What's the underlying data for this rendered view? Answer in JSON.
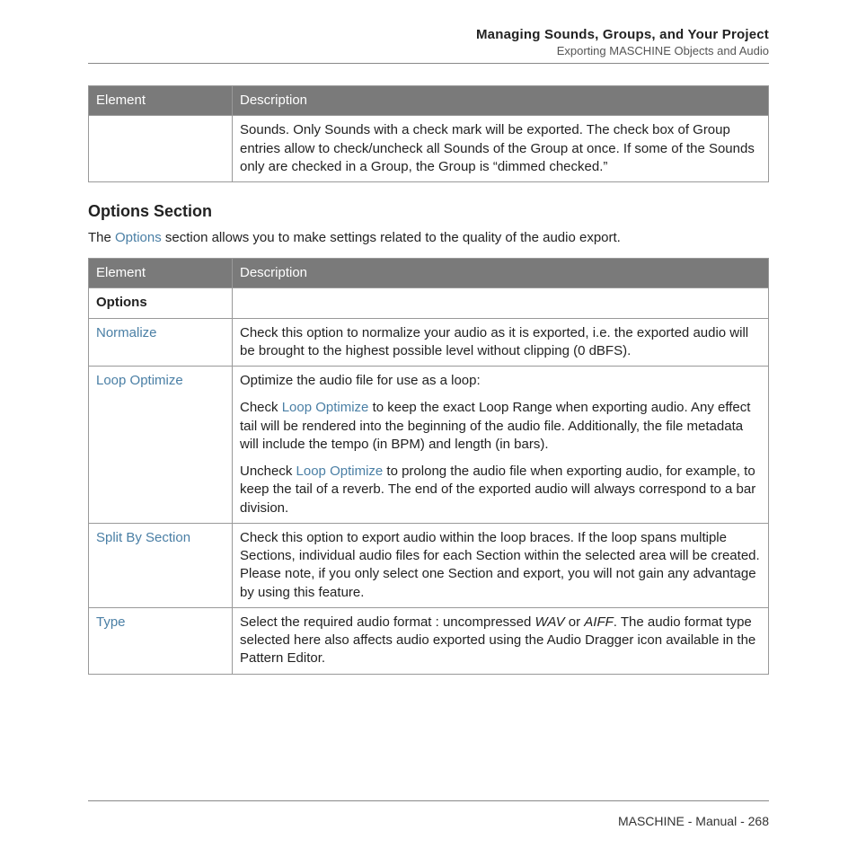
{
  "header": {
    "title": "Managing Sounds, Groups, and Your Project",
    "subtitle": "Exporting MASCHINE Objects and Audio"
  },
  "table1": {
    "columns": [
      "Element",
      "Description"
    ],
    "row_element": "",
    "row_description": "Sounds. Only Sounds with a check mark will be exported. The check box of Group entries allow to check/uncheck all Sounds of the Group at once. If some of the Sounds only are checked in a Group, the Group is “dimmed checked.”"
  },
  "section": {
    "heading": "Options Section",
    "intro_prefix": "The ",
    "intro_keyword": "Options",
    "intro_suffix": " section allows you to make settings related to the quality of the audio export."
  },
  "table2": {
    "columns": [
      "Element",
      "Description"
    ],
    "rows": {
      "options_label": "Options",
      "normalize": {
        "label": "Normalize",
        "desc": "Check this option to normalize your audio as it is exported, i.e. the exported audio will be brought to the highest possible level without clipping (0 dBFS)."
      },
      "loop": {
        "label": "Loop Optimize",
        "p1": "Optimize the audio file for use as a loop:",
        "p2_pre": "Check ",
        "p2_kw": "Loop Optimize",
        "p2_post": " to keep the exact Loop Range when exporting audio. Any effect tail will be rendered into the beginning of the audio file. Additionally, the file metadata will include the tempo (in BPM) and length (in bars).",
        "p3_pre": "Uncheck ",
        "p3_kw": "Loop Optimize",
        "p3_post": " to prolong the audio file when exporting audio, for example, to keep the tail of a reverb. The end of the exported audio will always correspond to a bar division."
      },
      "split": {
        "label": "Split By Section",
        "desc": "Check this option to export audio within the loop braces. If the loop spans multiple Sections, individual audio files for each Section within the selected area will be created. Please note, if you only select one Section and export, you will not gain any advantage by using this feature."
      },
      "type": {
        "label": "Type",
        "pre": "Select the required audio format : uncompressed ",
        "wav": "WAV",
        "mid": " or ",
        "aiff": "AIFF",
        "post": ". The audio format type selected here also affects audio exported using the Audio Dragger icon available in the Pattern Editor."
      }
    }
  },
  "footer": {
    "text": "MASCHINE - Manual - 268"
  },
  "colors": {
    "header_bg": "#7a7a7a",
    "header_fg": "#ffffff",
    "border": "#999999",
    "keyword": "#4a7fa5",
    "body": "#222222",
    "subtext": "#555555"
  }
}
